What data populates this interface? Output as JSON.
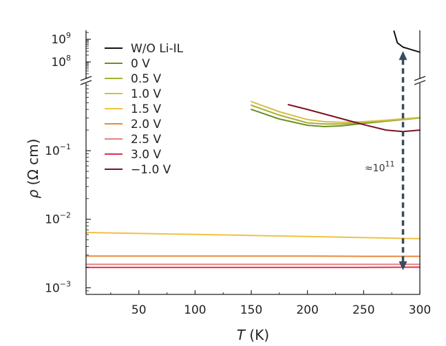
{
  "chart_data": {
    "type": "line",
    "title": "",
    "xlabel": "T (K)",
    "xlabel_var": "T",
    "xlabel_unit": "(K)",
    "ylabel": "ρ (Ω cm)",
    "ylabel_var": "ρ",
    "ylabel_unit": "(Ω cm)",
    "xlim": [
      3,
      300
    ],
    "x_ticks": [
      50,
      100,
      150,
      200,
      250,
      300
    ],
    "x_tick_labels": [
      "50",
      "100",
      "150",
      "200",
      "250",
      "300"
    ],
    "y_scale": "log",
    "y_axis_break": true,
    "y_lower_range": [
      0.0008,
      0.9
    ],
    "y_upper_range": [
      20000000,
      2500000000
    ],
    "y_ticks": [
      {
        "value": 1000000000,
        "base": "10",
        "exp": "9"
      },
      {
        "value": 100000000,
        "base": "10",
        "exp": "8"
      },
      {
        "value": 0.1,
        "base": "10",
        "exp": "−1"
      },
      {
        "value": 0.01,
        "base": "10",
        "exp": "−2"
      },
      {
        "value": 0.001,
        "base": "10",
        "exp": "−3"
      }
    ],
    "legend_position": "top-left",
    "series": [
      {
        "name": "W/O Li-IL",
        "color": "#111111",
        "x": [
          277,
          280,
          285,
          290,
          295,
          300
        ],
        "y": [
          2300000000,
          700000000,
          450000000,
          380000000,
          320000000,
          270000000
        ]
      },
      {
        "name": "0 V",
        "color": "#6b8e23",
        "x": [
          150,
          175,
          200,
          215,
          230,
          250,
          270,
          300
        ],
        "y": [
          0.4,
          0.29,
          0.235,
          0.225,
          0.23,
          0.25,
          0.27,
          0.3
        ]
      },
      {
        "name": "0.5 V",
        "color": "#a6b035",
        "x": [
          150,
          175,
          200,
          215,
          230,
          250,
          270,
          300
        ],
        "y": [
          0.46,
          0.33,
          0.255,
          0.245,
          0.245,
          0.258,
          0.274,
          0.3
        ]
      },
      {
        "name": "1.0 V",
        "color": "#d4c040",
        "x": [
          150,
          175,
          200,
          215,
          230,
          250,
          270,
          300
        ],
        "y": [
          0.52,
          0.37,
          0.285,
          0.265,
          0.26,
          0.265,
          0.278,
          0.305
        ]
      },
      {
        "name": "1.5 V",
        "color": "#f0c040",
        "x": [
          3,
          50,
          100,
          150,
          200,
          250,
          300
        ],
        "y": [
          0.0064,
          0.0062,
          0.006,
          0.0058,
          0.0056,
          0.0054,
          0.0052
        ]
      },
      {
        "name": "2.0 V",
        "color": "#e8893a",
        "x": [
          3,
          50,
          100,
          150,
          200,
          250,
          300
        ],
        "y": [
          0.0029,
          0.0029,
          0.0029,
          0.0029,
          0.0029,
          0.00288,
          0.00288
        ]
      },
      {
        "name": "2.5 V",
        "color": "#e58282",
        "x": [
          3,
          50,
          100,
          150,
          200,
          250,
          300
        ],
        "y": [
          0.0022,
          0.0022,
          0.0022,
          0.0022,
          0.0022,
          0.0022,
          0.0022
        ]
      },
      {
        "name": "3.0 V",
        "color": "#dc2f4f",
        "x": [
          3,
          50,
          100,
          150,
          200,
          250,
          300
        ],
        "y": [
          0.00198,
          0.00198,
          0.00198,
          0.00198,
          0.00198,
          0.00198,
          0.002
        ]
      },
      {
        "name": "−1.0 V",
        "color": "#7a1020",
        "x": [
          183,
          200,
          225,
          250,
          270,
          285,
          300
        ],
        "y": [
          0.47,
          0.4,
          0.31,
          0.24,
          0.2,
          0.19,
          0.2
        ]
      }
    ],
    "annotation": {
      "base": "≈10",
      "exp": "11",
      "x": 285,
      "y_from": 0.0018,
      "y_to": 300000000
    }
  }
}
